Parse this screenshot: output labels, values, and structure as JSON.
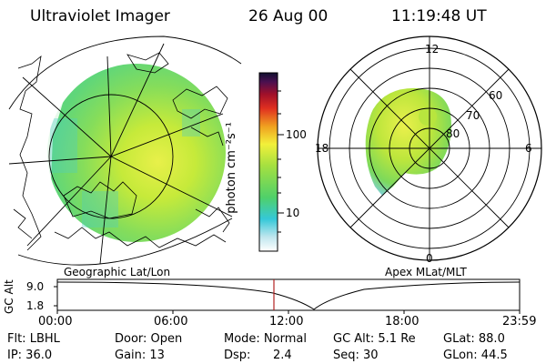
{
  "header": {
    "instrument": "Ultraviolet Imager",
    "date": "26 Aug 00",
    "time": "11:19:48 UT"
  },
  "colorbar": {
    "unit_label": "photon cm⁻²s⁻¹",
    "tick_100": "100",
    "tick_10": "10"
  },
  "geo_panel": {
    "label": "Geographic Lat/Lon"
  },
  "mag_panel": {
    "label": "Apex MLat/MLT",
    "mlt_12": "12",
    "mlt_18": "18",
    "mlt_6": "6",
    "mlt_0": "0",
    "lat_60": "60",
    "lat_70": "70",
    "lat_80": "80"
  },
  "alt_plot": {
    "axis_label": "GC Alt",
    "y_top": "9.0",
    "y_bottom": "1.8",
    "x_ticks": [
      "00:00",
      "06:00",
      "12:00",
      "18:00",
      "23:59"
    ]
  },
  "info": {
    "flt": "Flt: LBHL",
    "ip": "IP: 36.0",
    "door": "Door: Open",
    "gain": "Gain: 13",
    "mode": "Mode: Normal",
    "dsp_label": "Dsp:",
    "dsp_value": "2.4",
    "gc_alt": "GC Alt: 5.1 Re",
    "seq": "Seq: 30",
    "glat": "GLat: 88.0",
    "glon": "GLon: 44.5"
  },
  "colors": {
    "aurora_green": "#7ed957",
    "aurora_yellow": "#e8f04a",
    "time_marker": "#b22222"
  }
}
